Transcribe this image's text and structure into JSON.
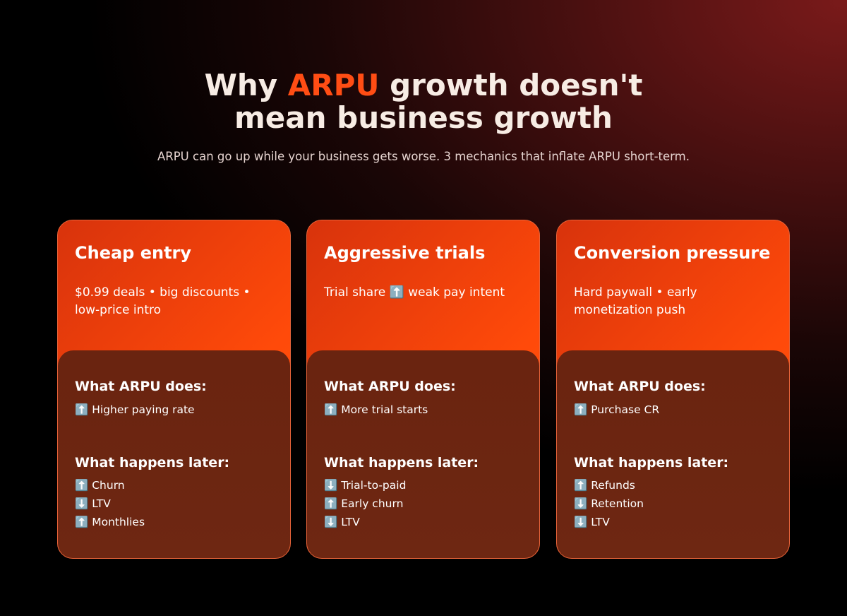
{
  "header": {
    "title_start": "Why",
    "title_highlight": "ARPU",
    "title_end": "growth doesn't mean business growth",
    "subtitle": "ARPU can go up while your business gets worse. 3 mechanics that inflate ARPU short-term."
  },
  "cards": [
    {
      "title": "Cheap entry",
      "description": "$0.99 deals • big discounts • low-price intro",
      "does_heading": "What ARPU does:",
      "does_items": [
        "⬆️ Higher paying rate"
      ],
      "later_heading": "What happens later:",
      "later_items": [
        "⬆️ Churn",
        "⬇️ LTV",
        "⬆️ Monthlies"
      ]
    },
    {
      "title": "Aggressive trials",
      "description": "Trial share ⬆️ weak pay intent",
      "does_heading": "What ARPU does:",
      "does_items": [
        "⬆️ More trial starts"
      ],
      "later_heading": "What happens later:",
      "later_items": [
        "⬇️ Trial-to-paid",
        "⬆️ Early churn",
        "⬇️ LTV"
      ]
    },
    {
      "title": "Conversion pressure",
      "description": "Hard paywall • early monetization push",
      "does_heading": "What ARPU does:",
      "does_items": [
        "⬆️ Purchase CR"
      ],
      "later_heading": "What happens later:",
      "later_items": [
        "⬆️ Refunds",
        "⬇️ Retention",
        "⬇️ LTV"
      ]
    }
  ]
}
